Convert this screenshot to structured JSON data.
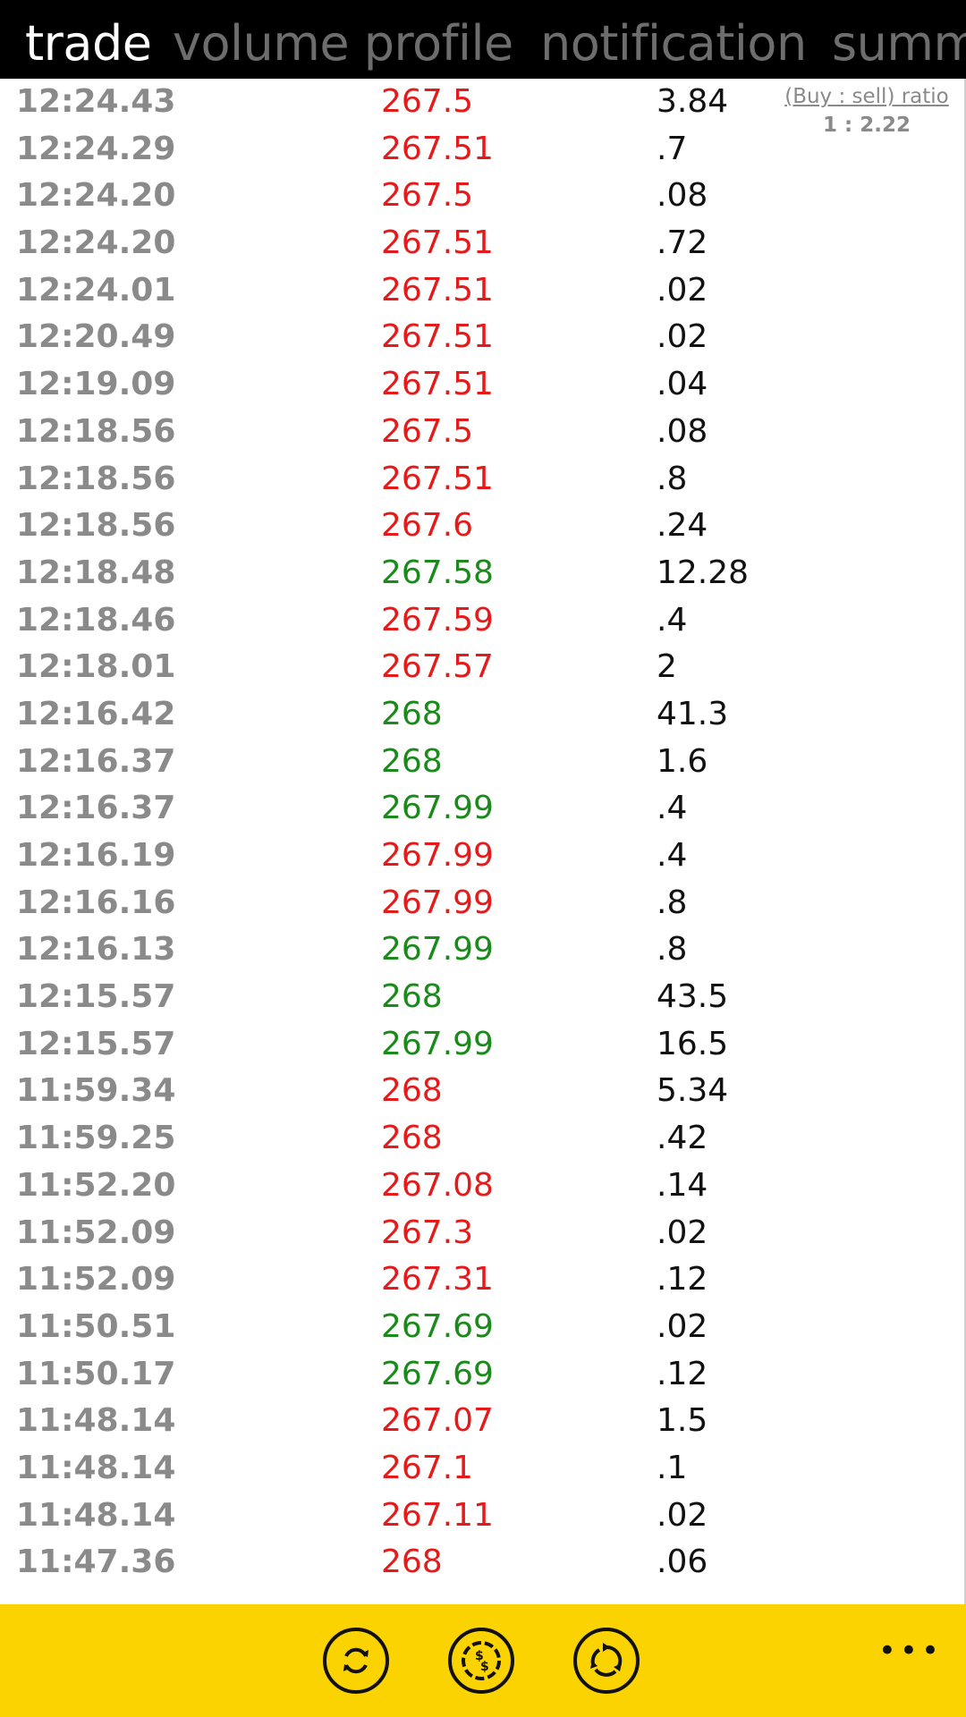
{
  "pivot": {
    "tabs": [
      {
        "label": "trade"
      },
      {
        "label": "volume profile"
      },
      {
        "label": "notification"
      },
      {
        "label": "summ"
      }
    ]
  },
  "ratio": {
    "label": "(Buy : sell) ratio",
    "value": "1 : 2.22"
  },
  "colors": {
    "buy": "#1a8a1a",
    "sell": "#e51b1b",
    "appbar": "#fbd300"
  },
  "trades": [
    {
      "time": "12:24.43",
      "price": "267.5",
      "volume": "3.84",
      "side": "sell"
    },
    {
      "time": "12:24.29",
      "price": "267.51",
      "volume": ".7",
      "side": "sell"
    },
    {
      "time": "12:24.20",
      "price": "267.5",
      "volume": ".08",
      "side": "sell"
    },
    {
      "time": "12:24.20",
      "price": "267.51",
      "volume": ".72",
      "side": "sell"
    },
    {
      "time": "12:24.01",
      "price": "267.51",
      "volume": ".02",
      "side": "sell"
    },
    {
      "time": "12:20.49",
      "price": "267.51",
      "volume": ".02",
      "side": "sell"
    },
    {
      "time": "12:19.09",
      "price": "267.51",
      "volume": ".04",
      "side": "sell"
    },
    {
      "time": "12:18.56",
      "price": "267.5",
      "volume": ".08",
      "side": "sell"
    },
    {
      "time": "12:18.56",
      "price": "267.51",
      "volume": ".8",
      "side": "sell"
    },
    {
      "time": "12:18.56",
      "price": "267.6",
      "volume": ".24",
      "side": "sell"
    },
    {
      "time": "12:18.48",
      "price": "267.58",
      "volume": "12.28",
      "side": "buy"
    },
    {
      "time": "12:18.46",
      "price": "267.59",
      "volume": ".4",
      "side": "sell"
    },
    {
      "time": "12:18.01",
      "price": "267.57",
      "volume": "2",
      "side": "sell"
    },
    {
      "time": "12:16.42",
      "price": "268",
      "volume": "41.3",
      "side": "buy"
    },
    {
      "time": "12:16.37",
      "price": "268",
      "volume": "1.6",
      "side": "buy"
    },
    {
      "time": "12:16.37",
      "price": "267.99",
      "volume": ".4",
      "side": "buy"
    },
    {
      "time": "12:16.19",
      "price": "267.99",
      "volume": ".4",
      "side": "sell"
    },
    {
      "time": "12:16.16",
      "price": "267.99",
      "volume": ".8",
      "side": "sell"
    },
    {
      "time": "12:16.13",
      "price": "267.99",
      "volume": ".8",
      "side": "buy"
    },
    {
      "time": "12:15.57",
      "price": "268",
      "volume": "43.5",
      "side": "buy"
    },
    {
      "time": "12:15.57",
      "price": "267.99",
      "volume": "16.5",
      "side": "buy"
    },
    {
      "time": "11:59.34",
      "price": "268",
      "volume": "5.34",
      "side": "sell"
    },
    {
      "time": "11:59.25",
      "price": "268",
      "volume": ".42",
      "side": "sell"
    },
    {
      "time": "11:52.20",
      "price": "267.08",
      "volume": ".14",
      "side": "sell"
    },
    {
      "time": "11:52.09",
      "price": "267.3",
      "volume": ".02",
      "side": "sell"
    },
    {
      "time": "11:52.09",
      "price": "267.31",
      "volume": ".12",
      "side": "sell"
    },
    {
      "time": "11:50.51",
      "price": "267.69",
      "volume": ".02",
      "side": "buy"
    },
    {
      "time": "11:50.17",
      "price": "267.69",
      "volume": ".12",
      "side": "buy"
    },
    {
      "time": "11:48.14",
      "price": "267.07",
      "volume": "1.5",
      "side": "sell"
    },
    {
      "time": "11:48.14",
      "price": "267.1",
      "volume": ".1",
      "side": "sell"
    },
    {
      "time": "11:48.14",
      "price": "267.11",
      "volume": ".02",
      "side": "sell"
    },
    {
      "time": "11:47.36",
      "price": "268",
      "volume": ".06",
      "side": "sell"
    }
  ],
  "appbar": {
    "buttons": [
      {
        "icon": "refresh-icon"
      },
      {
        "icon": "exchange-icon"
      },
      {
        "icon": "sync-icon"
      }
    ],
    "more_label": "•••"
  }
}
